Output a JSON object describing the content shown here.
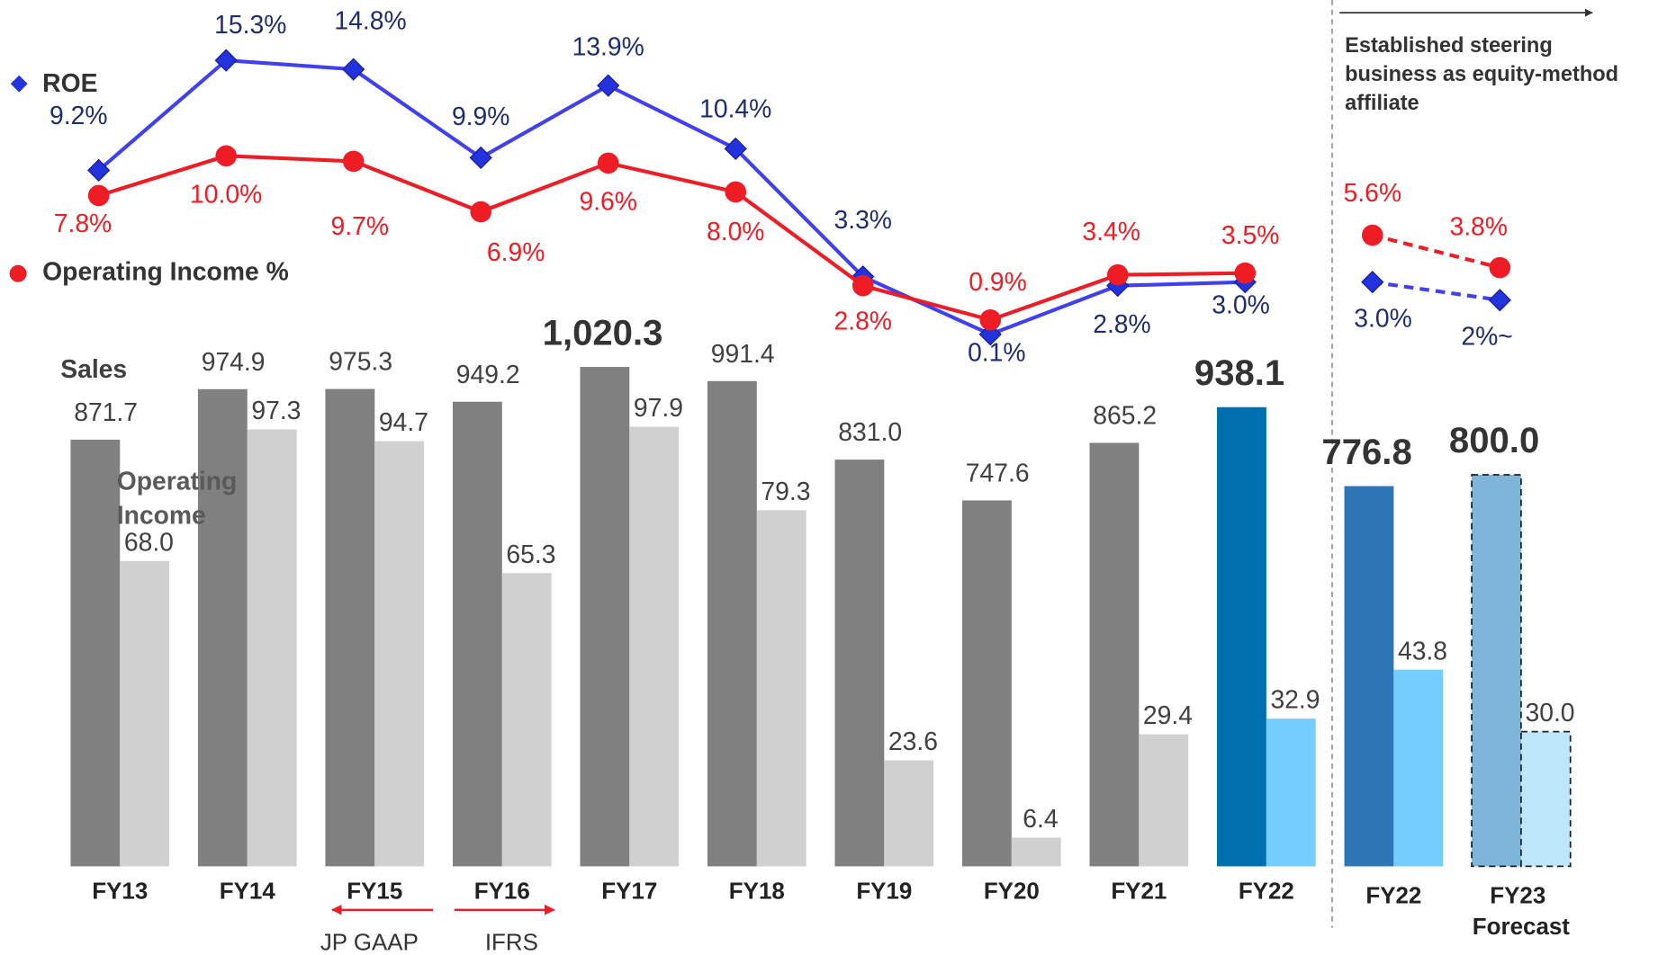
{
  "chart_data": [
    {
      "type": "bar_line",
      "categories": [
        "FY13",
        "FY14",
        "FY15",
        "FY16",
        "FY17",
        "FY18",
        "FY19",
        "FY20",
        "FY21",
        "FY22"
      ],
      "series": [
        {
          "name": "Sales",
          "colors": [
            "#808080",
            "#808080",
            "#808080",
            "#808080",
            "#808080",
            "#808080",
            "#808080",
            "#808080",
            "#808080",
            "#006fae"
          ],
          "values": [
            871.7,
            974.9,
            975.3,
            949.2,
            1020.3,
            991.4,
            831.0,
            747.6,
            865.2,
            938.1
          ],
          "value_labels": [
            "871.7",
            "974.9",
            "975.3",
            "949.2",
            "1,020.3",
            "991.4",
            "831.0",
            "747.6",
            "865.2",
            "938.1"
          ],
          "emphasized": [
            4,
            9
          ]
        },
        {
          "name": "Operating Income",
          "colors": [
            "#d0d0d0",
            "#d0d0d0",
            "#d0d0d0",
            "#d0d0d0",
            "#d0d0d0",
            "#d0d0d0",
            "#d0d0d0",
            "#d0d0d0",
            "#d0d0d0",
            "#75ccff"
          ],
          "values": [
            68.0,
            97.3,
            94.7,
            65.3,
            97.9,
            79.3,
            23.6,
            6.4,
            29.4,
            32.9
          ],
          "value_labels": [
            "68.0",
            "97.3",
            "94.7",
            "65.3",
            "97.9",
            "79.3",
            "23.6",
            "6.4",
            "29.4",
            "32.9"
          ]
        },
        {
          "name": "ROE",
          "type": "line",
          "marker": "diamond",
          "color": "#4040f0",
          "label_color": "#1f2d6e",
          "values": [
            9.2,
            15.3,
            14.8,
            9.9,
            13.9,
            10.4,
            3.3,
            0.1,
            2.8,
            3.0
          ],
          "value_labels": [
            "9.2%",
            "15.3%",
            "14.8%",
            "9.9%",
            "13.9%",
            "10.4%",
            "3.3%",
            "0.1%",
            "2.8%",
            "3.0%"
          ]
        },
        {
          "name": "Operating Income %",
          "type": "line",
          "marker": "circle",
          "color": "#ee1c25",
          "label_color": "#ee1c25",
          "values": [
            7.8,
            10.0,
            9.7,
            6.9,
            9.6,
            8.0,
            2.8,
            0.9,
            3.4,
            3.5
          ],
          "value_labels": [
            "7.8%",
            "10.0%",
            "9.7%",
            "6.9%",
            "9.6%",
            "8.0%",
            "2.8%",
            "0.9%",
            "3.4%",
            "3.5%"
          ]
        }
      ],
      "annotations": [
        "JP GAAP",
        "IFRS"
      ]
    },
    {
      "type": "bar_line",
      "categories": [
        "FY22",
        "FY23 Forecast"
      ],
      "annotation": [
        "Established steering",
        "business as equity-method",
        "affiliate"
      ],
      "series": [
        {
          "colors": [
            "#2e75b6",
            "#7fb5d8"
          ],
          "styles": [
            "solid",
            "dashed"
          ],
          "values": [
            776.8,
            800.0
          ],
          "value_labels": [
            "776.8",
            "800.0"
          ],
          "emphasized": [
            0,
            1
          ]
        },
        {
          "colors": [
            "#75ccff",
            "#bde6fb"
          ],
          "styles": [
            "solid",
            "dashed"
          ],
          "values": [
            43.8,
            30.0
          ],
          "value_labels": [
            "43.8",
            "30.0"
          ]
        },
        {
          "type": "line",
          "marker": "diamond",
          "color": "#4040f0",
          "label_color": "#1f2d6e",
          "dashed": true,
          "values": [
            3.0,
            2
          ],
          "value_labels": [
            "3.0%",
            "2%~"
          ]
        },
        {
          "type": "line",
          "marker": "circle",
          "color": "#ee1c25",
          "label_color": "#ee1c25",
          "dashed": true,
          "values": [
            5.6,
            3.8
          ],
          "value_labels": [
            "5.6%",
            "3.8%"
          ]
        }
      ]
    }
  ]
}
